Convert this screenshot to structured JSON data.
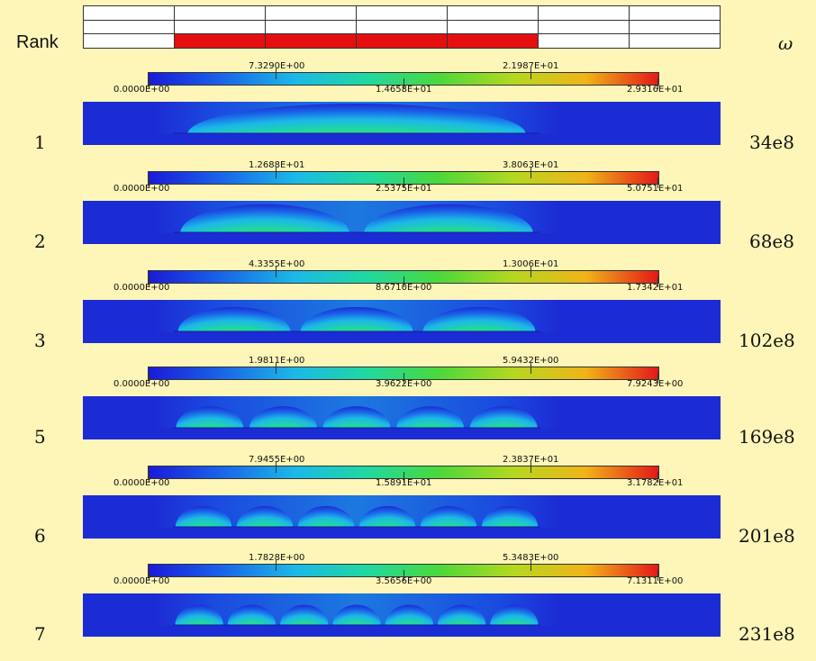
{
  "header": {
    "rank_label": "Rank",
    "omega_label": "ω"
  },
  "strip": {
    "rows": 3,
    "cols": 7,
    "highlighted_row": 2,
    "highlighted_cols": [
      1,
      2,
      3,
      4
    ],
    "highlight_color": "#e41010"
  },
  "colorbar_colors": [
    "#1a1ad8",
    "#1a64e8",
    "#1cb8e8",
    "#20d8a0",
    "#4cd83a",
    "#b4d820",
    "#f0b418",
    "#e41818"
  ],
  "modes": [
    {
      "rank": "1",
      "omega": "34e8",
      "lobes": 1,
      "labels": [
        "0.0000E+00",
        "7.3290E+00",
        "1.4658E+01",
        "2.1987E+01",
        "2.9316E+01"
      ]
    },
    {
      "rank": "2",
      "omega": "68e8",
      "lobes": 2,
      "labels": [
        "0.0000E+00",
        "1.2688E+01",
        "2.5375E+01",
        "3.8063E+01",
        "5.0751E+01"
      ]
    },
    {
      "rank": "3",
      "omega": "102e8",
      "lobes": 3,
      "labels": [
        "0.0000E+00",
        "4.3355E+00",
        "8.6710E+00",
        "1.3006E+01",
        "1.7342E+01"
      ]
    },
    {
      "rank": "5",
      "omega": "169e8",
      "lobes": 5,
      "labels": [
        "0.0000E+00",
        "1.9811E+00",
        "3.9622E+00",
        "5.9432E+00",
        "7.9243E+00"
      ]
    },
    {
      "rank": "6",
      "omega": "201e8",
      "lobes": 6,
      "labels": [
        "0.0000E+00",
        "7.9455E+00",
        "1.5891E+01",
        "2.3837E+01",
        "3.1782E+01"
      ]
    },
    {
      "rank": "7",
      "omega": "231e8",
      "lobes": 7,
      "labels": [
        "0.0000E+00",
        "1.7828E+00",
        "3.5656E+00",
        "5.3483E+00",
        "7.1311E+00"
      ]
    }
  ]
}
